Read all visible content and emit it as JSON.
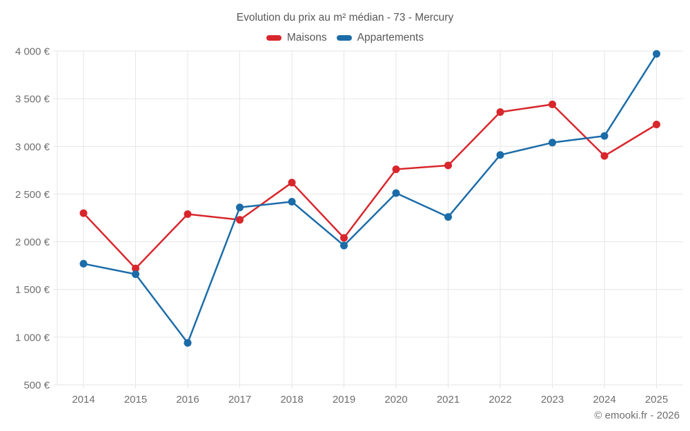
{
  "title": "Evolution du prix au m² médian - 73 - Mercury",
  "copyright": "© emooki.fr - 2026",
  "legend": {
    "items": [
      {
        "id": "maisons",
        "label": "Maisons",
        "color": "#d8262c"
      },
      {
        "id": "appartements",
        "label": "Appartements",
        "color": "#1b6ca8"
      }
    ]
  },
  "colors": {
    "maisons": "#d8262c",
    "appartements": "#1b6ca8",
    "grid": "#e6e6e6",
    "text": "#58585a",
    "axis_text": "#6e6e70"
  },
  "chart_data": {
    "type": "line",
    "title": "Evolution du prix au m² médian - 73 - Mercury",
    "x": [
      2014,
      2015,
      2016,
      2017,
      2018,
      2019,
      2020,
      2021,
      2022,
      2023,
      2024,
      2025
    ],
    "series": [
      {
        "name": "Maisons",
        "color": "#d8262c",
        "values": [
          2300,
          1720,
          2290,
          2230,
          2620,
          2040,
          2760,
          2800,
          3360,
          3440,
          2900,
          3230
        ]
      },
      {
        "name": "Appartements",
        "color": "#1b6ca8",
        "values": [
          1770,
          1660,
          940,
          2360,
          2420,
          1960,
          2510,
          2260,
          2910,
          3040,
          3110,
          3970
        ]
      }
    ],
    "ylim": [
      500,
      4000
    ],
    "ytick_step": 500,
    "ytick_suffix": " €",
    "grid": true,
    "legend_position": "top",
    "marker": "circle"
  }
}
